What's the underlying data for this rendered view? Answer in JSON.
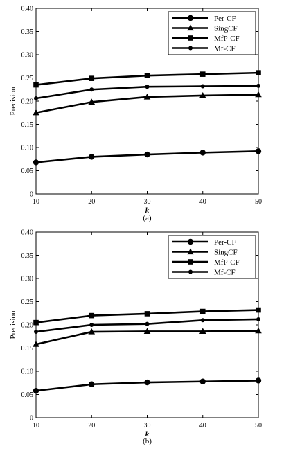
{
  "chart_data": [
    {
      "type": "line",
      "caption": "(a)",
      "xlabel": "k",
      "ylabel": "Precision",
      "x": [
        10,
        20,
        30,
        40,
        50
      ],
      "xlim": [
        10,
        50
      ],
      "ylim": [
        0,
        0.4
      ],
      "xticks": [
        "10",
        "20",
        "30",
        "40",
        "50"
      ],
      "yticks": [
        "0",
        "0.05",
        "0.10",
        "0.15",
        "0.20",
        "0.25",
        "0.30",
        "0.35",
        "0.40"
      ],
      "grid": false,
      "legend_position": "top-right",
      "series": [
        {
          "name": "Per-CF",
          "marker": "circle",
          "values": [
            0.068,
            0.08,
            0.085,
            0.089,
            0.092
          ]
        },
        {
          "name": "SingCF",
          "marker": "triangle",
          "values": [
            0.175,
            0.198,
            0.209,
            0.212,
            0.214
          ]
        },
        {
          "name": "MfP-CF",
          "marker": "square",
          "values": [
            0.235,
            0.249,
            0.255,
            0.258,
            0.261
          ]
        },
        {
          "name": "Mf-CF",
          "marker": "dot",
          "values": [
            0.206,
            0.225,
            0.231,
            0.232,
            0.233
          ]
        }
      ]
    },
    {
      "type": "line",
      "caption": "(b)",
      "xlabel": "k",
      "ylabel": "Precision",
      "x": [
        10,
        20,
        30,
        40,
        50
      ],
      "xlim": [
        10,
        50
      ],
      "ylim": [
        0,
        0.4
      ],
      "xticks": [
        "10",
        "20",
        "30",
        "40",
        "50"
      ],
      "yticks": [
        "0",
        "0.05",
        "0.10",
        "0.15",
        "0.20",
        "0.25",
        "0.30",
        "0.35",
        "0.40"
      ],
      "grid": false,
      "legend_position": "top-right",
      "series": [
        {
          "name": "Per-CF",
          "marker": "circle",
          "values": [
            0.058,
            0.072,
            0.076,
            0.078,
            0.08
          ]
        },
        {
          "name": "SingCF",
          "marker": "triangle",
          "values": [
            0.158,
            0.185,
            0.186,
            0.186,
            0.187
          ]
        },
        {
          "name": "MfP-CF",
          "marker": "square",
          "values": [
            0.205,
            0.22,
            0.224,
            0.229,
            0.232
          ]
        },
        {
          "name": "Mf-CF",
          "marker": "dot",
          "values": [
            0.185,
            0.2,
            0.202,
            0.21,
            0.212
          ]
        }
      ]
    }
  ]
}
